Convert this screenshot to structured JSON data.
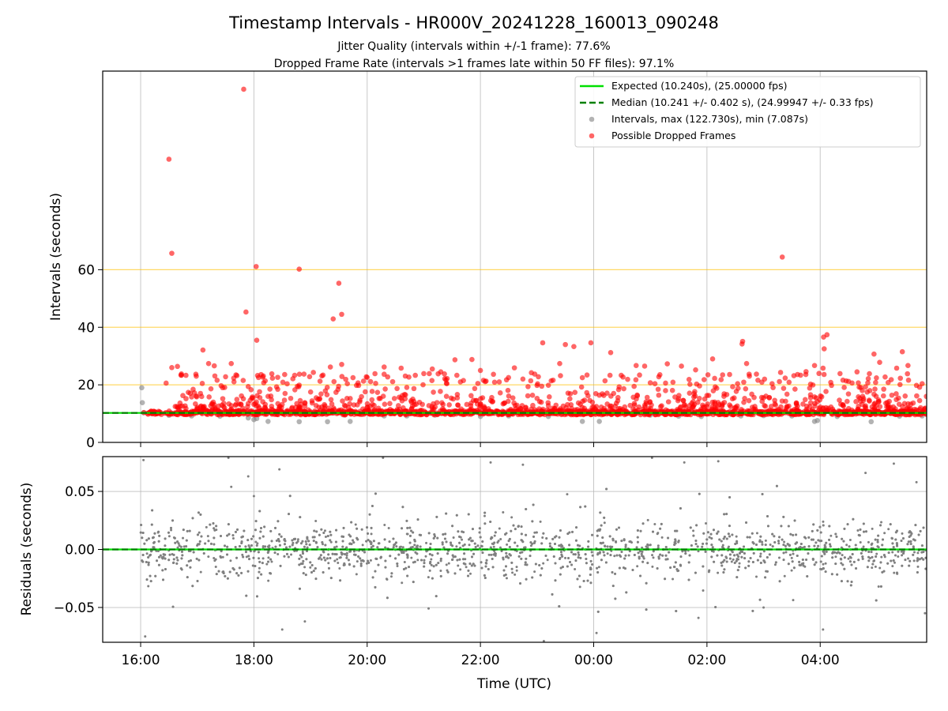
{
  "chart_data": [
    {
      "type": "scatter",
      "title": "Timestamp Intervals - HR000V_20241228_160013_090248",
      "subtitle_lines": [
        "Jitter Quality (intervals within +/-1 frame): 77.6%",
        "Dropped Frame Rate (intervals >1 frames late within 50 FF files): 97.1%"
      ],
      "xlabel": "",
      "ylabel": "Intervals (seconds)",
      "x_range_hours": [
        15.33,
        29.88
      ],
      "x_ticks": [
        {
          "h": 16,
          "label": "16:00"
        },
        {
          "h": 18,
          "label": "18:00"
        },
        {
          "h": 20,
          "label": "20:00"
        },
        {
          "h": 22,
          "label": "22:00"
        },
        {
          "h": 24,
          "label": "00:00"
        },
        {
          "h": 26,
          "label": "02:00"
        },
        {
          "h": 28,
          "label": "04:00"
        }
      ],
      "ylim": [
        0,
        129
      ],
      "y_ticks": [
        0,
        20,
        40,
        60
      ],
      "threshold_lines": {
        "values": [
          20,
          40,
          60
        ],
        "color": "#ffbf00"
      },
      "grid": "vertical",
      "legend_position": "top-right",
      "series": [
        {
          "name": "Expected (10.240s), (25.00000 fps)",
          "style": "solid-line",
          "color": "#00e000",
          "value": 10.24
        },
        {
          "name": "Median (10.241 +/- 0.402 s), (24.99947 +/- 0.33 fps)",
          "style": "dashed-line",
          "color": "#008000",
          "value": 10.241
        },
        {
          "name": "Intervals, max (122.730s), min (7.087s)",
          "style": "points",
          "color": "#808080",
          "points": [
            [
              16.02,
              19
            ],
            [
              16.03,
              13.8
            ],
            [
              16.05,
              10.3
            ],
            [
              16.5,
              9.4
            ],
            [
              16.9,
              9.2
            ],
            [
              17.4,
              9.1
            ],
            [
              17.9,
              8.5
            ],
            [
              18.0,
              7.9
            ],
            [
              18.05,
              8.3
            ],
            [
              18.25,
              7.3
            ],
            [
              18.8,
              7.2
            ],
            [
              19.3,
              7.2
            ],
            [
              19.6,
              9.5
            ],
            [
              19.7,
              7.3
            ],
            [
              20.3,
              9.2
            ],
            [
              20.7,
              9.2
            ],
            [
              21.2,
              9.5
            ],
            [
              22.0,
              9.0
            ],
            [
              22.5,
              9.2
            ],
            [
              23.2,
              9.0
            ],
            [
              23.8,
              7.3
            ],
            [
              24.1,
              7.3
            ],
            [
              25.0,
              9.5
            ],
            [
              25.5,
              9.1
            ],
            [
              25.9,
              9.0
            ],
            [
              26.6,
              9.2
            ],
            [
              27.0,
              9.3
            ],
            [
              27.5,
              9.2
            ],
            [
              27.9,
              7.3
            ],
            [
              27.95,
              7.6
            ],
            [
              28.3,
              9.0
            ],
            [
              28.9,
              7.2
            ],
            [
              29.4,
              9.1
            ],
            [
              29.8,
              9.2
            ]
          ]
        },
        {
          "name": "Possible Dropped Frames",
          "style": "points",
          "color": "#ff0000",
          "points": [
            [
              16.55,
              65.7
            ],
            [
              16.5,
              98.4
            ],
            [
              17.82,
              122.7
            ],
            [
              18.04,
              61.1
            ],
            [
              18.8,
              60.2
            ],
            [
              17.86,
              45.3
            ],
            [
              18.05,
              35.5
            ],
            [
              19.5,
              55.3
            ],
            [
              19.55,
              44.5
            ],
            [
              19.4,
              42.9
            ],
            [
              28.12,
              37.4
            ],
            [
              28.06,
              36.6
            ],
            [
              28.07,
              32.5
            ],
            [
              26.63,
              35.1
            ],
            [
              26.62,
              34.2
            ],
            [
              27.33,
              64.4
            ],
            [
              16.45,
              20.6
            ],
            [
              16.55,
              26
            ],
            [
              16.65,
              26.4
            ],
            [
              16.72,
              23.8
            ],
            [
              16.8,
              23.3
            ],
            [
              16.95,
              17.2
            ],
            [
              17.1,
              32.1
            ],
            [
              17.2,
              27.4
            ],
            [
              17.3,
              26.6
            ],
            [
              17.35,
              21.6
            ],
            [
              17.5,
              22.8
            ],
            [
              17.6,
              27.4
            ],
            [
              17.7,
              23.2
            ],
            [
              17.9,
              19.4
            ],
            [
              17.95,
              18.3
            ],
            [
              18.1,
              17.6
            ],
            [
              18.2,
              21.4
            ],
            [
              18.4,
              19.3
            ],
            [
              18.55,
              17.0
            ],
            [
              18.65,
              15.3
            ],
            [
              18.8,
              19.9
            ],
            [
              18.9,
              13.8
            ],
            [
              19.05,
              24.3
            ],
            [
              19.2,
              23.1
            ],
            [
              19.35,
              26.2
            ],
            [
              19.45,
              17.4
            ],
            [
              19.55,
              27.1
            ],
            [
              19.65,
              20.4
            ],
            [
              19.75,
              22.5
            ],
            [
              19.85,
              19.8
            ],
            [
              20.0,
              22.6
            ],
            [
              20.15,
              20.5
            ],
            [
              20.3,
              26.2
            ],
            [
              20.45,
              21.1
            ],
            [
              20.6,
              25.8
            ],
            [
              20.7,
              19.1
            ],
            [
              20.85,
              23.3
            ],
            [
              21.0,
              23.9
            ],
            [
              21.15,
              25.5
            ],
            [
              21.3,
              24.5
            ],
            [
              21.4,
              20.5
            ],
            [
              21.55,
              28.7
            ],
            [
              21.7,
              21.5
            ],
            [
              21.85,
              28.8
            ],
            [
              22.0,
              25.0
            ],
            [
              22.1,
              21.3
            ],
            [
              22.25,
              20.9
            ],
            [
              22.35,
              17.2
            ],
            [
              22.5,
              16.1
            ],
            [
              22.6,
              25.9
            ],
            [
              22.75,
              22.0
            ],
            [
              22.9,
              24.2
            ],
            [
              23.0,
              19.8
            ],
            [
              23.1,
              34.6
            ],
            [
              23.25,
              21.4
            ],
            [
              23.4,
              27.4
            ],
            [
              23.5,
              34.0
            ],
            [
              23.65,
              33.3
            ],
            [
              23.8,
              22.5
            ],
            [
              23.95,
              34.6
            ],
            [
              24.1,
              16.4
            ],
            [
              24.2,
              21.4
            ],
            [
              24.3,
              31.2
            ],
            [
              24.45,
              19.3
            ],
            [
              24.6,
              21.9
            ],
            [
              24.75,
              26.7
            ],
            [
              24.9,
              26.5
            ],
            [
              25.0,
              20.7
            ],
            [
              25.15,
              22.8
            ],
            [
              25.3,
              27.3
            ],
            [
              25.4,
              20.9
            ],
            [
              25.55,
              26.5
            ],
            [
              25.7,
              20.2
            ],
            [
              25.8,
              25.2
            ],
            [
              25.95,
              21.8
            ],
            [
              26.1,
              29.0
            ],
            [
              26.25,
              21.8
            ],
            [
              26.4,
              23.6
            ],
            [
              26.55,
              18.8
            ],
            [
              26.7,
              27.4
            ],
            [
              26.9,
              21.6
            ],
            [
              27.0,
              15.5
            ],
            [
              27.15,
              20.4
            ],
            [
              27.3,
              24.3
            ],
            [
              27.45,
              20.9
            ],
            [
              27.6,
              23.6
            ],
            [
              27.75,
              24.6
            ],
            [
              27.9,
              26.7
            ],
            [
              28.05,
              25.8
            ],
            [
              28.2,
              19.8
            ],
            [
              28.35,
              23.9
            ],
            [
              28.5,
              21.2
            ],
            [
              28.65,
              24.5
            ],
            [
              28.8,
              19.3
            ],
            [
              28.95,
              30.7
            ],
            [
              29.05,
              27.8
            ],
            [
              29.2,
              20.8
            ],
            [
              29.35,
              25.8
            ],
            [
              29.45,
              31.5
            ],
            [
              29.55,
              26.7
            ],
            [
              29.7,
              19.8
            ],
            [
              29.8,
              20.4
            ],
            [
              16.7,
              12.5
            ],
            [
              17.0,
              12.2
            ],
            [
              17.3,
              13.1
            ],
            [
              17.6,
              12.8
            ],
            [
              17.9,
              13.5
            ],
            [
              18.2,
              12.1
            ],
            [
              18.5,
              13.2
            ],
            [
              18.9,
              12.6
            ],
            [
              19.2,
              12.3
            ],
            [
              19.6,
              12.9
            ],
            [
              20.0,
              12.2
            ],
            [
              20.4,
              13.5
            ],
            [
              20.8,
              12.6
            ],
            [
              21.2,
              12.3
            ],
            [
              21.6,
              13.0
            ],
            [
              22.0,
              12.7
            ],
            [
              22.4,
              13.4
            ],
            [
              22.8,
              12.2
            ],
            [
              23.2,
              12.8
            ],
            [
              23.6,
              13.1
            ],
            [
              24.0,
              12.4
            ],
            [
              24.4,
              13.6
            ],
            [
              24.8,
              12.3
            ],
            [
              25.2,
              12.7
            ],
            [
              25.6,
              13.2
            ],
            [
              26.0,
              12.5
            ],
            [
              26.4,
              13.0
            ],
            [
              26.8,
              12.2
            ],
            [
              27.2,
              13.4
            ],
            [
              27.6,
              12.6
            ],
            [
              28.0,
              12.3
            ],
            [
              28.4,
              13.1
            ],
            [
              28.8,
              12.7
            ],
            [
              29.2,
              12.4
            ],
            [
              29.6,
              13.3
            ],
            [
              16.9,
              15.8
            ],
            [
              17.45,
              15.2
            ],
            [
              18.3,
              16.1
            ],
            [
              19.1,
              15.5
            ],
            [
              19.9,
              15.9
            ],
            [
              20.6,
              15.4
            ],
            [
              21.4,
              16.0
            ],
            [
              22.2,
              15.6
            ],
            [
              23.0,
              15.3
            ],
            [
              23.9,
              16.2
            ],
            [
              24.7,
              15.7
            ],
            [
              25.5,
              15.2
            ],
            [
              26.3,
              16.0
            ],
            [
              27.1,
              15.5
            ],
            [
              27.9,
              15.8
            ],
            [
              28.7,
              15.3
            ],
            [
              29.5,
              16.1
            ]
          ]
        }
      ],
      "dense_band": {
        "color": "#ff0000",
        "x_range_hours": [
          16.6,
          29.88
        ],
        "y_range": [
          9.6,
          11.0
        ]
      }
    },
    {
      "type": "scatter",
      "title": "",
      "xlabel": "Time (UTC)",
      "ylabel": "Residuals (seconds)",
      "ylim": [
        -0.08,
        0.08
      ],
      "y_ticks": [
        {
          "v": 0.05,
          "label": "0.05"
        },
        {
          "v": 0.0,
          "label": "0.00"
        },
        {
          "v": -0.05,
          "label": "−0.05"
        }
      ],
      "grid": "both",
      "zero_line": {
        "expected_color": "#00e000",
        "median_color": "#008000",
        "value": 0.0
      },
      "series": [
        {
          "name": "",
          "style": "points",
          "color": "#808080",
          "count": 2600,
          "x_range_hours": [
            16.0,
            29.88
          ],
          "core_sigma": 0.012,
          "outlier_fraction": 0.05,
          "outliers": [
            [
              16.05,
              0.077
            ],
            [
              16.08,
              -0.075
            ],
            [
              17.55,
              0.079
            ],
            [
              17.6,
              0.054
            ],
            [
              17.9,
              0.063
            ],
            [
              18.0,
              0.046
            ],
            [
              18.45,
              0.069
            ],
            [
              18.5,
              -0.069
            ],
            [
              18.9,
              -0.062
            ],
            [
              20.28,
              0.079
            ],
            [
              22.18,
              0.075
            ],
            [
              22.4,
              0.032
            ],
            [
              22.75,
              0.073
            ],
            [
              23.12,
              -0.079
            ],
            [
              24.05,
              -0.072
            ],
            [
              25.03,
              0.079
            ],
            [
              25.6,
              0.075
            ],
            [
              25.85,
              -0.059
            ],
            [
              26.2,
              0.076
            ],
            [
              27.0,
              -0.05
            ],
            [
              28.05,
              -0.069
            ],
            [
              28.8,
              0.066
            ],
            [
              29.3,
              0.074
            ],
            [
              29.7,
              0.058
            ],
            [
              29.85,
              -0.055
            ]
          ]
        }
      ]
    }
  ]
}
